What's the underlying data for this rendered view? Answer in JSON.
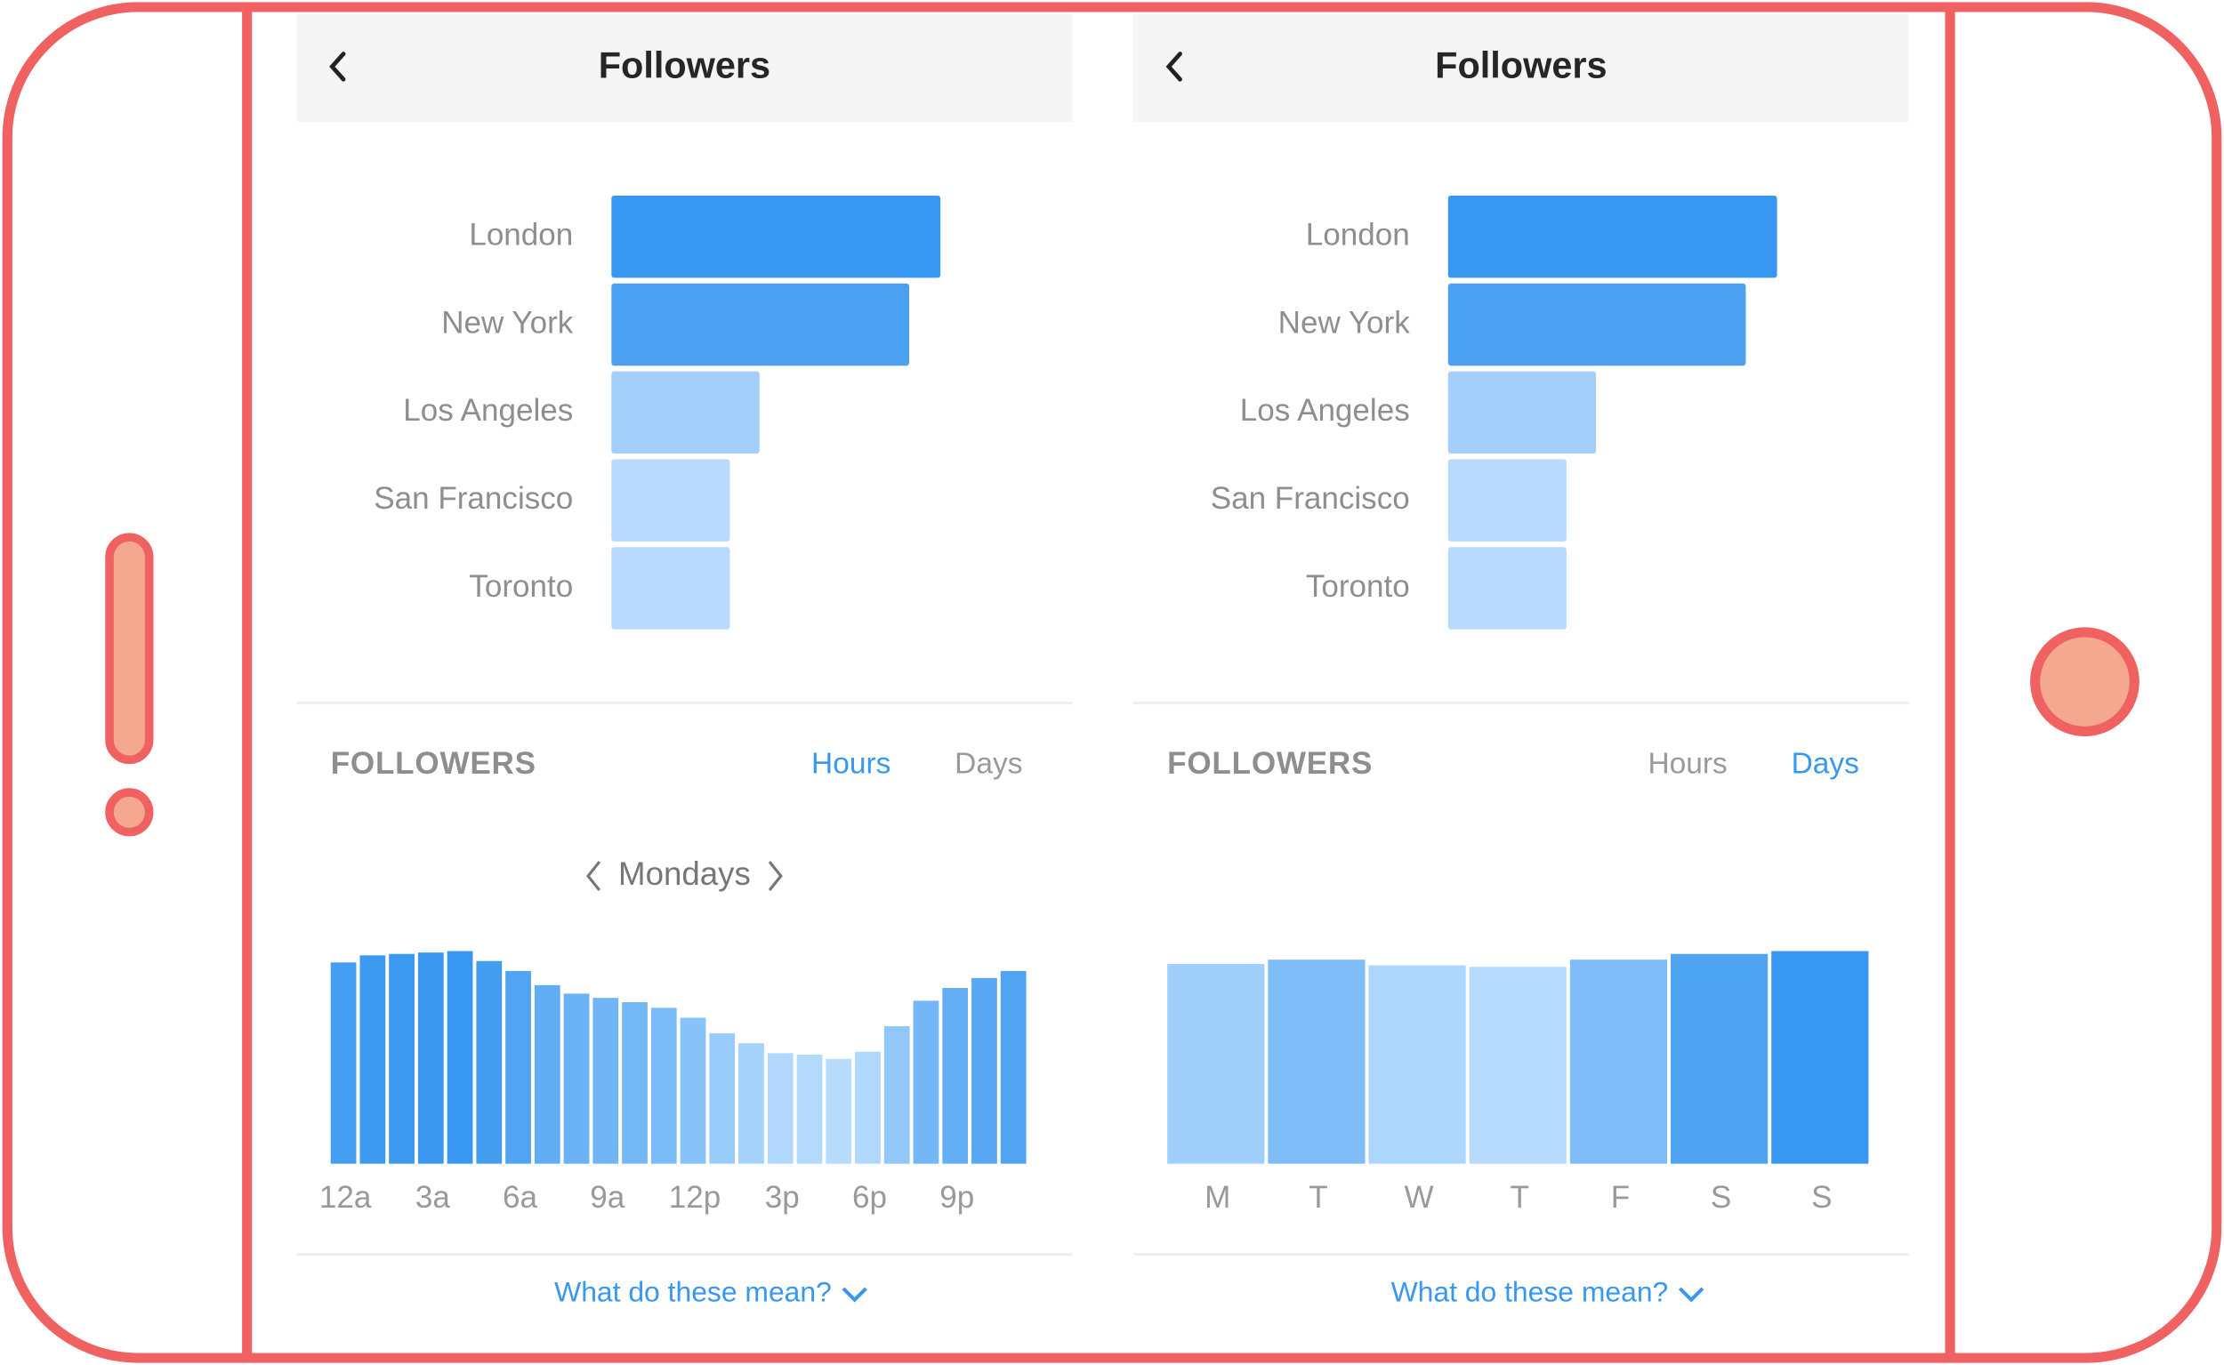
{
  "screens": [
    {
      "header": {
        "title": "Followers"
      },
      "locations": {
        "type": "bar",
        "categories": [
          "London",
          "New York",
          "Los Angeles",
          "San Francisco",
          "Toronto"
        ],
        "values": [
          100,
          90.5,
          45,
          36,
          36
        ],
        "colors": [
          "#3897f0",
          "#4ba0f2",
          "#a3cffa",
          "#b8dafc",
          "#b8dafc"
        ]
      },
      "activity": {
        "type": "bar",
        "title": "FOLLOWERS",
        "tabs": [
          "Hours",
          "Days"
        ],
        "active_tab": 0,
        "period": "Mondays",
        "categories": [
          "12a",
          null,
          null,
          "3a",
          null,
          null,
          "6a",
          null,
          null,
          "9a",
          null,
          null,
          "12p",
          null,
          null,
          "3p",
          null,
          null,
          "6p",
          null,
          null,
          "9p",
          null,
          null
        ],
        "values": [
          142,
          147,
          148,
          149,
          150,
          143,
          136,
          126,
          120,
          117,
          114,
          110,
          103,
          92,
          85,
          78,
          77,
          74,
          79,
          97,
          115,
          124,
          131,
          136
        ],
        "color_range": [
          "#b8dcfd",
          "#3897f0"
        ]
      },
      "help_link": "What do these mean?"
    },
    {
      "header": {
        "title": "Followers"
      },
      "locations": {
        "type": "bar",
        "categories": [
          "London",
          "New York",
          "Los Angeles",
          "San Francisco",
          "Toronto"
        ],
        "values": [
          100,
          90.5,
          45,
          36,
          36
        ],
        "colors": [
          "#3897f0",
          "#4ba0f2",
          "#a3cffa",
          "#b8dafc",
          "#b8dafc"
        ]
      },
      "activity": {
        "type": "bar",
        "title": "FOLLOWERS",
        "tabs": [
          "Hours",
          "Days"
        ],
        "active_tab": 1,
        "categories": [
          "M",
          "T",
          "W",
          "T",
          "F",
          "S",
          "S"
        ],
        "values": [
          140,
          143,
          139,
          138,
          143,
          147,
          149
        ],
        "color_range": [
          "#b8dcfd",
          "#3897f0"
        ]
      },
      "help_link": "What do these mean?"
    }
  ]
}
